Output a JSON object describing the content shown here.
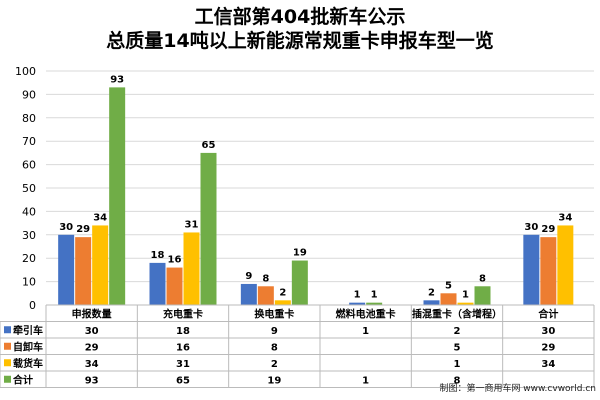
{
  "title_line1": "工信部第404批新车公示",
  "title_line2": "总质量14吨以上新能源常规重卡申报车型一览",
  "credit": "制图：第一商用车网 www.cvworld.cn",
  "chart_data": {
    "type": "bar",
    "title": "工信部第404批新车公示 总质量14吨以上新能源常规重卡申报车型一览",
    "categories": [
      "申报数量",
      "充电重卡",
      "换电重卡",
      "燃料电池重卡",
      "插混重卡（含增程）",
      "合计"
    ],
    "series": [
      {
        "name": "牵引车",
        "color": "#4472c4",
        "values": [
          30,
          18,
          9,
          1,
          2,
          30
        ]
      },
      {
        "name": "自卸车",
        "color": "#ed7d31",
        "values": [
          29,
          16,
          8,
          null,
          5,
          29
        ]
      },
      {
        "name": "载货车",
        "color": "#ffc000",
        "values": [
          34,
          31,
          2,
          null,
          1,
          34
        ]
      },
      {
        "name": "合计",
        "color": "#70ad47",
        "values": [
          93,
          65,
          19,
          1,
          8,
          null
        ]
      }
    ],
    "ylim": [
      0,
      100
    ],
    "yticks": [
      0,
      10,
      20,
      30,
      40,
      50,
      60,
      70,
      80,
      90,
      100
    ],
    "grid": true,
    "legend": "data-table"
  }
}
